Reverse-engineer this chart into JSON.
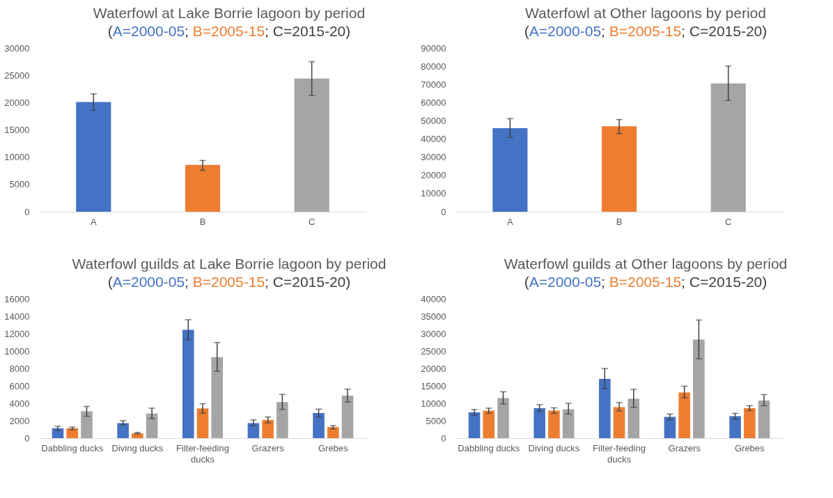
{
  "chart_data": [
    {
      "type": "bar",
      "title": "Waterfowl at Lake Borrie lagoon by period",
      "subtitle": "(A=2000-05; B=2005-15; C=2015-20)",
      "categories": [
        "A",
        "B",
        "C"
      ],
      "values": [
        20100,
        8600,
        24400
      ],
      "colors": [
        "#4472c4",
        "#ed7d31",
        "#a5a5a5"
      ],
      "errors": [
        [
          18600,
          21600
        ],
        [
          7600,
          9400
        ],
        [
          21300,
          27500
        ]
      ],
      "ylim": [
        0,
        30000
      ],
      "yticks": [
        0,
        5000,
        10000,
        15000,
        20000,
        25000,
        30000
      ]
    },
    {
      "type": "bar",
      "title": "Waterfowl at Other lagoons by period",
      "subtitle": "(A=2000-05; B=2005-15; C=2015-20)",
      "categories": [
        "A",
        "B",
        "C"
      ],
      "values": [
        46000,
        47000,
        70600
      ],
      "colors": [
        "#4472c4",
        "#ed7d31",
        "#a5a5a5"
      ],
      "errors": [
        [
          40900,
          51200
        ],
        [
          43000,
          50700
        ],
        [
          61200,
          80100
        ]
      ],
      "ylim": [
        0,
        90000
      ],
      "yticks": [
        0,
        10000,
        20000,
        30000,
        40000,
        50000,
        60000,
        70000,
        80000,
        90000
      ]
    },
    {
      "type": "bar",
      "title": "Waterfowl guilds at Lake Borrie lagoon by period",
      "subtitle": "(A=2000-05; B=2005-15; C=2015-20)",
      "categories": [
        "Dabbling ducks",
        "Diving ducks",
        "Filter-feeding ducks",
        "Grazers",
        "Grebes"
      ],
      "series": [
        {
          "color": "#4472c4",
          "values": [
            1130,
            1720,
            12440,
            1720,
            2880
          ],
          "errors": [
            [
              850,
              1350
            ],
            [
              1520,
              2000
            ],
            [
              11290,
              13600
            ],
            [
              1410,
              2090
            ],
            [
              2430,
              3330
            ]
          ]
        },
        {
          "color": "#ed7d31",
          "values": [
            1130,
            540,
            3410,
            2090,
            1270
          ],
          "errors": [
            [
              960,
              1270
            ],
            [
              480,
              650
            ],
            [
              2880,
              3950
            ],
            [
              1750,
              2430
            ],
            [
              1040,
              1440
            ]
          ]
        },
        {
          "color": "#a5a5a5",
          "values": [
            3080,
            2820,
            9310,
            4150,
            4880
          ],
          "errors": [
            [
              2510,
              3640
            ],
            [
              2230,
              3440
            ],
            [
              7670,
              10980
            ],
            [
              3300,
              5020
            ],
            [
              4150,
              5620
            ]
          ]
        }
      ],
      "ylim": [
        0,
        16000
      ],
      "yticks": [
        0,
        2000,
        4000,
        6000,
        8000,
        10000,
        12000,
        14000,
        16000
      ]
    },
    {
      "type": "bar",
      "title": "Waterfowl guilds at Other lagoons by period",
      "subtitle": "(A=2000-05; B=2005-15; C=2015-20)",
      "categories": [
        "Dabbling ducks",
        "Diving ducks",
        "Filter-feeding ducks",
        "Grazers",
        "Grebes"
      ],
      "series": [
        {
          "color": "#4472c4",
          "values": [
            7400,
            8600,
            17000,
            6100,
            6300
          ],
          "errors": [
            [
              6600,
              8200
            ],
            [
              7700,
              9600
            ],
            [
              14200,
              20000
            ],
            [
              5300,
              6900
            ],
            [
              5400,
              7100
            ]
          ]
        },
        {
          "color": "#ed7d31",
          "values": [
            7900,
            7900,
            8900,
            13100,
            8600
          ],
          "errors": [
            [
              7100,
              8600
            ],
            [
              7100,
              8700
            ],
            [
              7800,
              10200
            ],
            [
              11600,
              14900
            ],
            [
              7900,
              9300
            ]
          ]
        },
        {
          "color": "#a5a5a5",
          "values": [
            11500,
            8300,
            11300,
            28300,
            10800
          ],
          "errors": [
            [
              9800,
              13300
            ],
            [
              6900,
              10000
            ],
            [
              8800,
              14000
            ],
            [
              22800,
              33900
            ],
            [
              9300,
              12500
            ]
          ]
        }
      ],
      "ylim": [
        0,
        40000
      ],
      "yticks": [
        0,
        5000,
        10000,
        15000,
        20000,
        25000,
        30000,
        35000,
        40000
      ]
    }
  ]
}
